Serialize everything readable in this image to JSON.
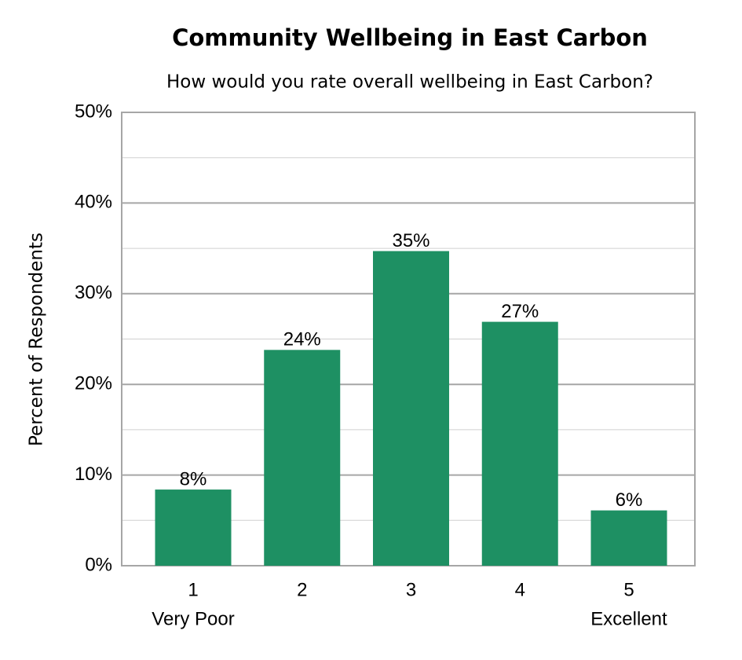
{
  "chart_data": {
    "type": "bar",
    "title": "Community Wellbeing in East Carbon",
    "subtitle": "How would you rate overall wellbeing in East Carbon?",
    "y_label": "Percent of Respondents",
    "categories": [
      "1",
      "2",
      "3",
      "4",
      "5"
    ],
    "category_sublabels": [
      "Very Poor",
      null,
      null,
      null,
      "Excellent"
    ],
    "values": [
      8.4,
      23.8,
      34.7,
      26.9,
      6.1
    ],
    "value_labels": [
      "8%",
      "24%",
      "35%",
      "27%",
      "6%"
    ],
    "color": "#1e9063",
    "ylim": [
      0,
      50
    ],
    "yticks": [
      {
        "value": 0,
        "label": "0%"
      },
      {
        "value": 10,
        "label": "10%"
      },
      {
        "value": 20,
        "label": "20%"
      },
      {
        "value": 30,
        "label": "30%"
      },
      {
        "value": 40,
        "label": "40%"
      },
      {
        "value": 50,
        "label": "50%"
      }
    ],
    "minor_yticks": [
      5,
      15,
      25,
      35,
      45
    ],
    "grid": true
  }
}
